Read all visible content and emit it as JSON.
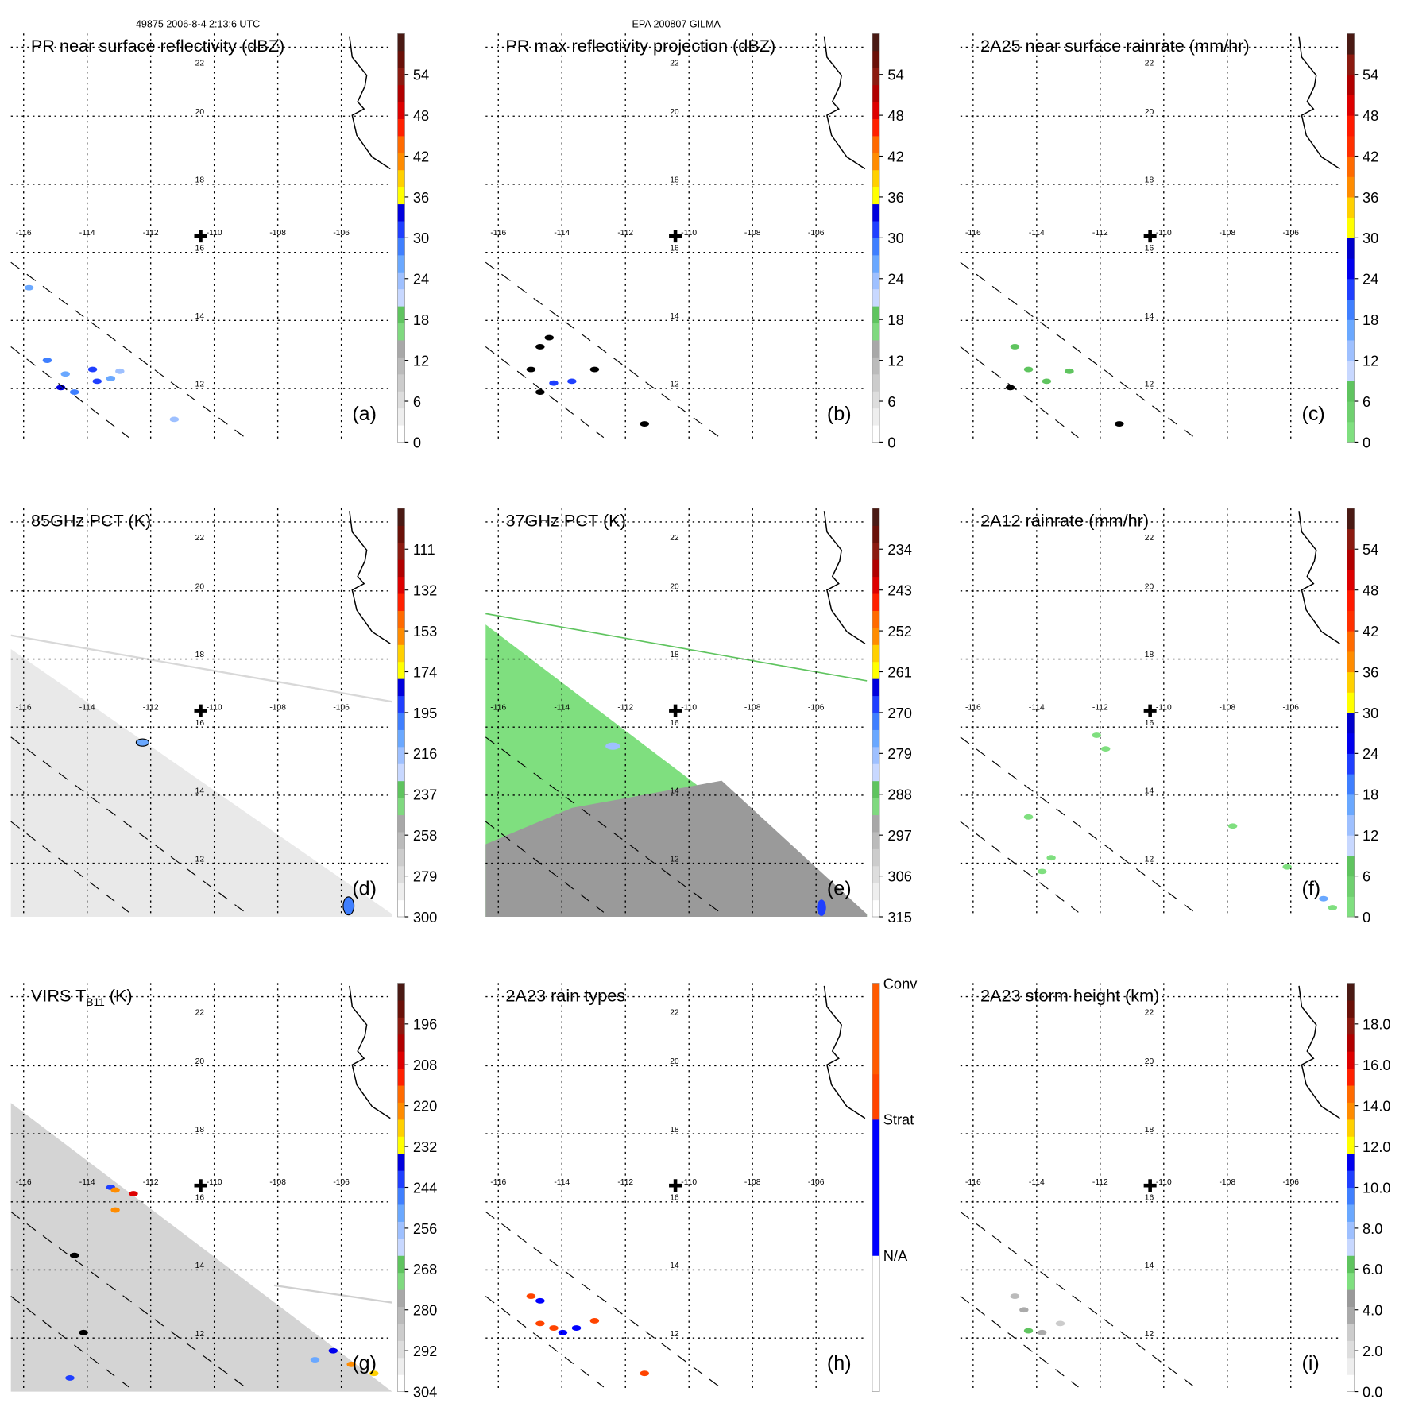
{
  "header": {
    "left": "49875 2006-8-4 2:13:6 UTC",
    "center": "EPA 200807 GILMA"
  },
  "grid": {
    "lat_labels": [
      "22",
      "20",
      "18",
      "16",
      "14",
      "12"
    ],
    "lon_labels": [
      "-116",
      "-114",
      "-112",
      "-110",
      "-108",
      "-106"
    ]
  },
  "palettes": {
    "refl": [
      "#ffffff",
      "#eeeeee",
      "#dddddd",
      "#cccccc",
      "#bbbbbb",
      "#a8a8a8",
      "#7fd97f",
      "#5fc45f",
      "#c8d8ff",
      "#9ec0ff",
      "#6aa8ff",
      "#3f7fff",
      "#1f3fff",
      "#0000dd",
      "#ffff00",
      "#ffd000",
      "#ff8c00",
      "#ff6a00",
      "#ff2000",
      "#dd0000",
      "#b00000",
      "#8b1a10",
      "#6a1008",
      "#4a1a14"
    ],
    "rain": [
      "#7fdf7f",
      "#6fd06f",
      "#5fc45f",
      "#c8d8ff",
      "#9ec0ff",
      "#6aa8ff",
      "#3f7fff",
      "#1f3fff",
      "#0000ee",
      "#0000cc",
      "#ffff00",
      "#ffd000",
      "#ff8c00",
      "#ff6a00",
      "#ff3000",
      "#ff1a00",
      "#dd0000",
      "#b00000",
      "#8b1a10",
      "#4a1a14"
    ],
    "height": [
      "#ffffff",
      "#eeeeee",
      "#dddddd",
      "#cccccc",
      "#aaaaaa",
      "#999999",
      "#7fdf7f",
      "#5fc45f",
      "#c8d8ff",
      "#9ec0ff",
      "#6aa8ff",
      "#3f7fff",
      "#1f3fff",
      "#0000ee",
      "#ffff00",
      "#ffd000",
      "#ff8c00",
      "#ff6a00",
      "#ff2000",
      "#dd0000",
      "#b00000",
      "#8b1a10",
      "#6a1008",
      "#4a1a14"
    ],
    "types": [
      "#ffffff",
      "#ffffff",
      "#ffffff",
      "#0000ff",
      "#0000ff",
      "#0000ff",
      "#ff4400",
      "#ff5a00",
      "#ff5a00"
    ]
  },
  "panels": [
    {
      "title": "PR near surface reflectivity (dBZ)",
      "letter": "(a)",
      "palette": "refl",
      "ticks": [
        "54",
        "48",
        "42",
        "36",
        "30",
        "24",
        "18",
        "12",
        "6",
        "0"
      ]
    },
    {
      "title": "PR max reflectivity projection (dBZ)",
      "letter": "(b)",
      "palette": "refl",
      "ticks": [
        "54",
        "48",
        "42",
        "36",
        "30",
        "24",
        "18",
        "12",
        "6",
        "0"
      ]
    },
    {
      "title": "2A25 near surface rainrate (mm/hr)",
      "letter": "(c)",
      "palette": "rain",
      "ticks": [
        "54",
        "48",
        "42",
        "36",
        "30",
        "24",
        "18",
        "12",
        "6",
        "0"
      ]
    },
    {
      "title": "85GHz PCT (K)",
      "letter": "(d)",
      "palette": "refl",
      "ticks": [
        "111",
        "132",
        "153",
        "174",
        "195",
        "216",
        "237",
        "258",
        "279",
        "300"
      ]
    },
    {
      "title": "37GHz PCT (K)",
      "letter": "(e)",
      "palette": "refl",
      "ticks": [
        "234",
        "243",
        "252",
        "261",
        "270",
        "279",
        "288",
        "297",
        "306",
        "315"
      ]
    },
    {
      "title": "2A12 rainrate (mm/hr)",
      "letter": "(f)",
      "palette": "rain",
      "ticks": [
        "54",
        "48",
        "42",
        "36",
        "30",
        "24",
        "18",
        "12",
        "6",
        "0"
      ]
    },
    {
      "title": "VIRS T",
      "title_sub": "B11",
      "title_tail": " (K)",
      "letter": "(g)",
      "palette": "refl",
      "ticks": [
        "196",
        "208",
        "220",
        "232",
        "244",
        "256",
        "268",
        "280",
        "292",
        "304"
      ]
    },
    {
      "title": "2A23 rain types",
      "letter": "(h)",
      "palette": "types",
      "categories": [
        "Conv",
        "Strat",
        "N/A"
      ]
    },
    {
      "title": "2A23 storm height (km)",
      "letter": "(i)",
      "palette": "height",
      "ticks": [
        "18.0",
        "16.0",
        "14.0",
        "12.0",
        "10.0",
        "8.0",
        "6.0",
        "4.0",
        "2.0",
        "0.0"
      ]
    }
  ]
}
